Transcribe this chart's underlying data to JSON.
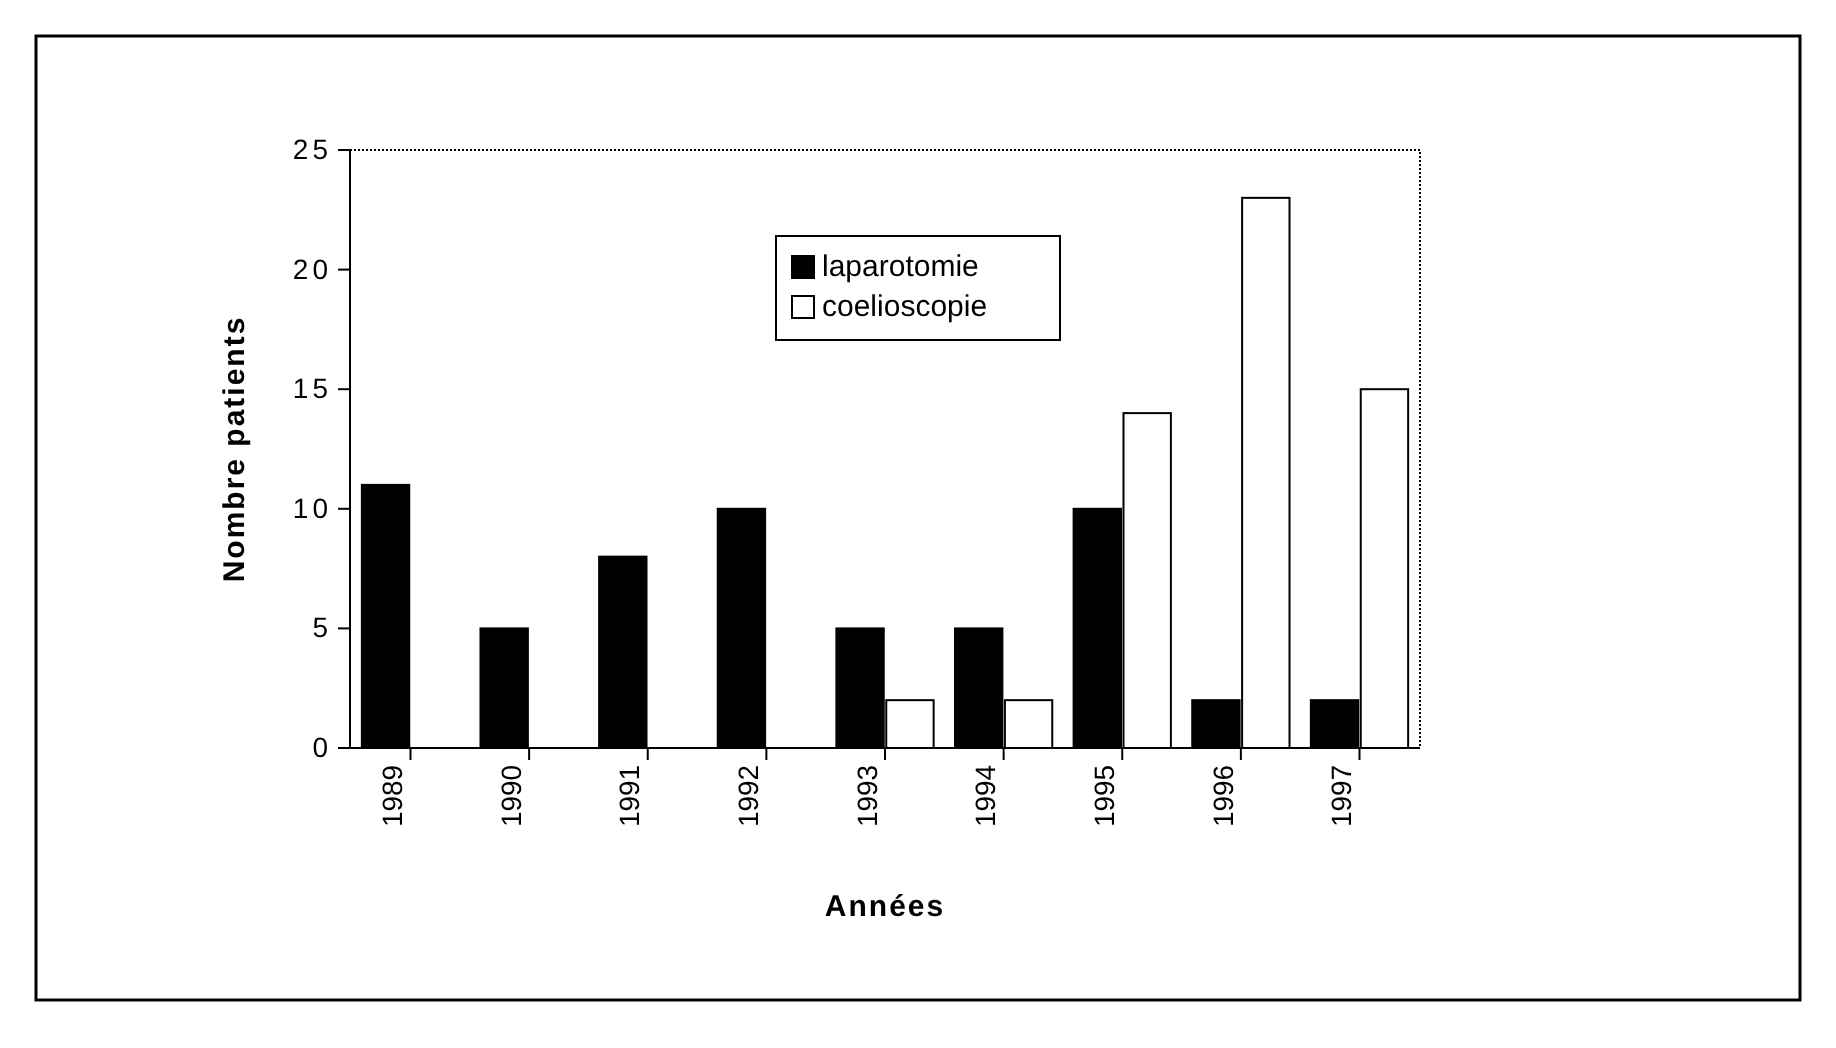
{
  "chart_data": {
    "type": "bar",
    "xlabel": "Années",
    "ylabel": "Nombre patients",
    "categories": [
      "1989",
      "1990",
      "1991",
      "1992",
      "1993",
      "1994",
      "1995",
      "1996",
      "1997"
    ],
    "series": [
      {
        "name": "laparotomie",
        "color": "#000000",
        "values": [
          11,
          5,
          8,
          10,
          5,
          5,
          10,
          2,
          2
        ]
      },
      {
        "name": "coelioscopie",
        "color": "#ffffff",
        "values": [
          0,
          0,
          0,
          0,
          2,
          2,
          14,
          23,
          15
        ]
      }
    ],
    "ylim": [
      0,
      25
    ],
    "yticks": [
      0,
      5,
      10,
      15,
      20,
      25
    ],
    "grid": false,
    "legend": "top"
  }
}
